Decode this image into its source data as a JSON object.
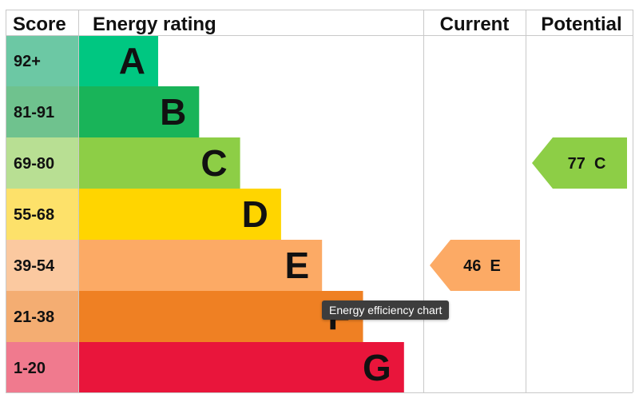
{
  "chart_data": {
    "type": "bar",
    "headers": {
      "score": "Score",
      "rating": "Energy rating",
      "current": "Current",
      "potential": "Potential"
    },
    "bands": [
      {
        "letter": "A",
        "range": "92+",
        "color": "#00c781",
        "score_color": "#6cc8a4"
      },
      {
        "letter": "B",
        "range": "81-91",
        "color": "#19b459",
        "score_color": "#6fc28e"
      },
      {
        "letter": "C",
        "range": "69-80",
        "color": "#8dce46",
        "score_color": "#b8df93"
      },
      {
        "letter": "D",
        "range": "55-68",
        "color": "#ffd500",
        "score_color": "#fde16a"
      },
      {
        "letter": "E",
        "range": "39-54",
        "color": "#fcaa65",
        "score_color": "#fbc9a0"
      },
      {
        "letter": "F",
        "range": "21-38",
        "color": "#ef8023",
        "score_color": "#f4ad72"
      },
      {
        "letter": "G",
        "range": "1-20",
        "color": "#e9153b",
        "score_color": "#f07a8e"
      }
    ],
    "current": {
      "value": 46,
      "band": "E",
      "label": "46 E",
      "color": "#fcaa65"
    },
    "potential": {
      "value": 77,
      "band": "C",
      "label": "77 C",
      "color": "#8dce46"
    }
  },
  "tooltip": {
    "text": "Energy efficiency chart"
  }
}
